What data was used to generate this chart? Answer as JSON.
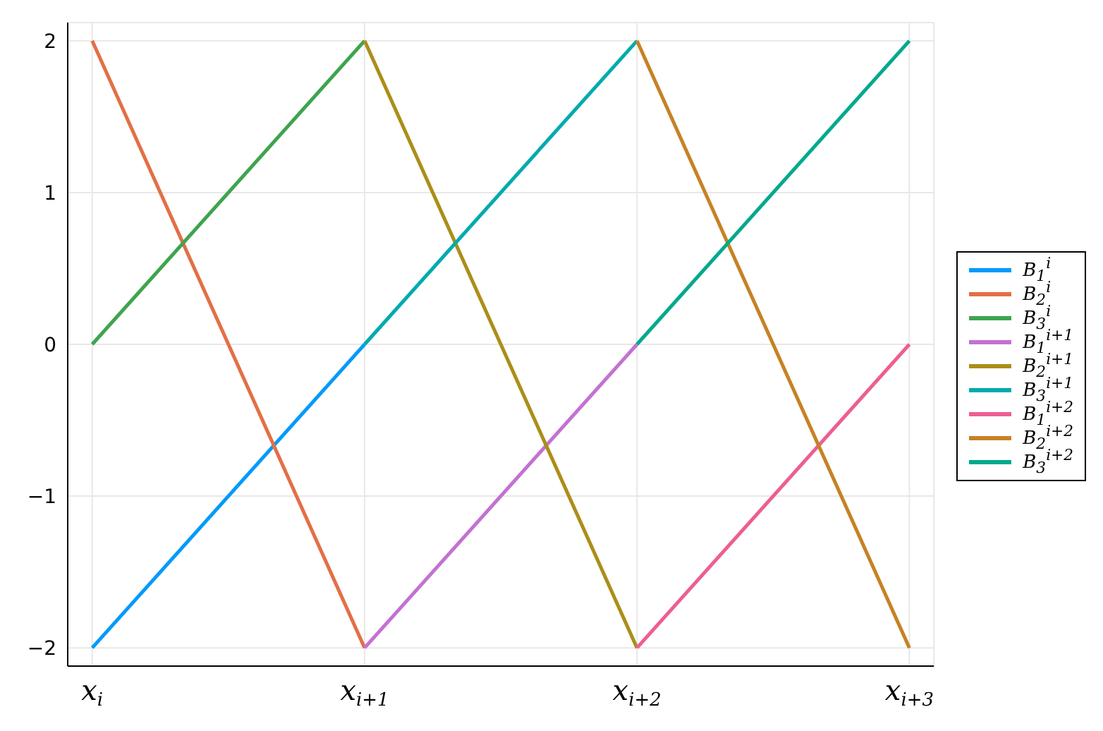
{
  "chart_data": {
    "type": "line",
    "ylim": [
      -2.12,
      2.12
    ],
    "categories": [
      "x$_{i}$",
      "x$_{i+1}$",
      "x$_{i+2}$",
      "x$_{i+3}$"
    ],
    "yticks": [
      -2,
      -1,
      0,
      1,
      2
    ],
    "grid": true,
    "legend": "right",
    "marker": "none",
    "line_style": "solid",
    "series": [
      {
        "name": "B$_{1}$$^{i}$",
        "color": "#009afa",
        "values": [
          -2,
          0,
          null,
          null
        ]
      },
      {
        "name": "B$_{2}$$^{i}$",
        "color": "#e36f47",
        "values": [
          2,
          -2,
          null,
          null
        ]
      },
      {
        "name": "B$_{3}$$^{i}$",
        "color": "#3ea44e",
        "values": [
          0,
          2,
          null,
          null
        ]
      },
      {
        "name": "B$_{1}$$^{i+1}$",
        "color": "#c371d2",
        "values": [
          null,
          -2,
          0,
          null
        ]
      },
      {
        "name": "B$_{2}$$^{i+1}$",
        "color": "#ac8e18",
        "values": [
          null,
          2,
          -2,
          null
        ]
      },
      {
        "name": "B$_{3}$$^{i+1}$",
        "color": "#00aaae",
        "values": [
          null,
          0,
          2,
          null
        ]
      },
      {
        "name": "B$_{1}$$^{i+2}$",
        "color": "#ed5e93",
        "values": [
          null,
          null,
          -2,
          0
        ]
      },
      {
        "name": "B$_{2}$$^{i+2}$",
        "color": "#c68225",
        "values": [
          null,
          null,
          2,
          -2
        ]
      },
      {
        "name": "B$_{3}$$^{i+2}$",
        "color": "#00a98d",
        "values": [
          null,
          null,
          0,
          2
        ]
      }
    ]
  }
}
